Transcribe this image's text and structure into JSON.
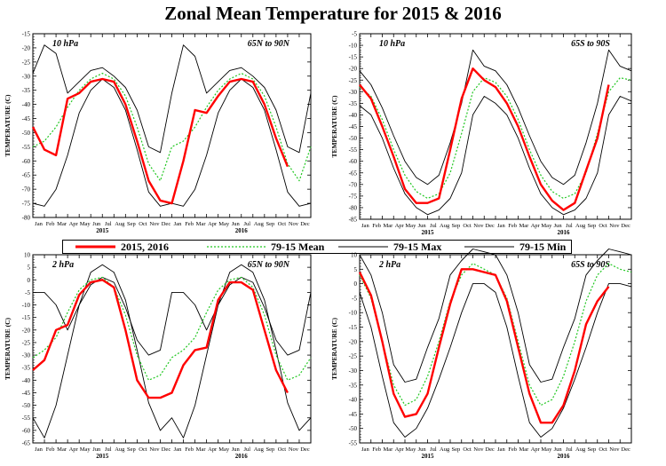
{
  "title": "Zonal Mean Temperature for 2015 & 2016",
  "legend": [
    {
      "label": "2015, 2016",
      "color": "#ff0000",
      "style": "solid-thick"
    },
    {
      "label": "79-15 Mean",
      "color": "#22c722",
      "style": "dotted"
    },
    {
      "label": "79-15 Max",
      "color": "#000000",
      "style": "solid"
    },
    {
      "label": "79-15 Min",
      "color": "#000000",
      "style": "solid"
    }
  ],
  "months": [
    "Jan",
    "Feb",
    "Mar",
    "Apr",
    "May",
    "Jun",
    "Jul",
    "Aug",
    "Sep",
    "Oct",
    "Nov",
    "Dec"
  ],
  "years": [
    "2015",
    "2016"
  ],
  "ylabel": "TEMPERATURE (C)",
  "chart_data": [
    {
      "type": "line",
      "pressure": "10 hPa",
      "region": "65N to 90N",
      "ylabel": "TEMPERATURE (C)",
      "ylim": [
        -80,
        -15
      ],
      "yticks": [
        -80,
        -75,
        -70,
        -65,
        -60,
        -55,
        -50,
        -45,
        -40,
        -35,
        -30,
        -25,
        -20,
        -15
      ],
      "x_months": [
        0,
        1,
        2,
        3,
        4,
        5,
        6,
        7,
        8,
        9,
        10,
        11,
        12,
        13,
        14,
        15,
        16,
        17,
        18,
        19,
        20,
        21,
        22,
        23,
        24
      ],
      "series": [
        {
          "name": "79-15 Mean",
          "values": [
            -55,
            -53,
            -48,
            -41,
            -35,
            -31,
            -29,
            -31,
            -37,
            -48,
            -61,
            -67,
            -55,
            -53,
            -48,
            -41,
            -35,
            -31,
            -29,
            -31,
            -37,
            -48,
            -61,
            -67,
            -55
          ]
        },
        {
          "name": "79-15 Max",
          "values": [
            -29,
            -19,
            -22,
            -36,
            -32,
            -28,
            -27,
            -30,
            -34,
            -42,
            -55,
            -57,
            -36,
            -19,
            -23,
            -36,
            -32,
            -28,
            -27,
            -30,
            -34,
            -42,
            -55,
            -57,
            -36
          ]
        },
        {
          "name": "79-15 Min",
          "values": [
            -75,
            -76,
            -70,
            -58,
            -43,
            -35,
            -31,
            -34,
            -42,
            -56,
            -71,
            -76,
            -75,
            -76,
            -70,
            -58,
            -43,
            -35,
            -31,
            -34,
            -42,
            -56,
            -71,
            -76,
            -75
          ]
        },
        {
          "name": "2015, 2016",
          "values": [
            -48,
            -56,
            -58,
            -38,
            -36,
            -32,
            -31,
            -32,
            -40,
            -53,
            -67,
            -74,
            -75,
            -60,
            -42,
            -43,
            -37,
            -32,
            -31,
            -32,
            -40,
            -52,
            -62,
            null,
            null
          ]
        }
      ]
    },
    {
      "type": "line",
      "pressure": "10 hPa",
      "region": "65S to 90S",
      "ylabel": "TEMPERATURE (C)",
      "ylim": [
        -85,
        -5
      ],
      "yticks": [
        -85,
        -80,
        -75,
        -70,
        -65,
        -60,
        -55,
        -50,
        -45,
        -40,
        -35,
        -30,
        -25,
        -20,
        -15,
        -10,
        -5
      ],
      "x_months": [
        0,
        1,
        2,
        3,
        4,
        5,
        6,
        7,
        8,
        9,
        10,
        11,
        12,
        13,
        14,
        15,
        16,
        17,
        18,
        19,
        20,
        21,
        22,
        23,
        24
      ],
      "series": [
        {
          "name": "79-15 Mean",
          "values": [
            -28,
            -32,
            -42,
            -55,
            -66,
            -73,
            -76,
            -74,
            -65,
            -48,
            -30,
            -24,
            -26,
            -32,
            -42,
            -55,
            -66,
            -73,
            -76,
            -74,
            -65,
            -48,
            -30,
            -24,
            -25
          ]
        },
        {
          "name": "79-15 Max",
          "values": [
            -21,
            -27,
            -37,
            -49,
            -60,
            -67,
            -70,
            -66,
            -52,
            -35,
            -12,
            -19,
            -21,
            -27,
            -37,
            -49,
            -60,
            -67,
            -70,
            -66,
            -52,
            -35,
            -12,
            -19,
            -21
          ]
        },
        {
          "name": "79-15 Min",
          "values": [
            -36,
            -40,
            -50,
            -63,
            -74,
            -80,
            -83,
            -81,
            -76,
            -65,
            -40,
            -32,
            -35,
            -40,
            -50,
            -63,
            -74,
            -80,
            -83,
            -81,
            -76,
            -65,
            -40,
            -32,
            -34
          ]
        },
        {
          "name": "2015, 2016",
          "values": [
            -27,
            -33,
            -45,
            -58,
            -72,
            -78,
            -78,
            -76,
            -55,
            -33,
            -20,
            -25,
            -28,
            -35,
            -45,
            -58,
            -70,
            -77,
            -81,
            -78,
            -64,
            -50,
            -27,
            null,
            null
          ]
        }
      ]
    },
    {
      "type": "line",
      "pressure": "2 hPa",
      "region": "65N to 90N",
      "ylabel": "TEMPERATURE (C)",
      "ylim": [
        -65,
        10
      ],
      "yticks": [
        -65,
        -60,
        -55,
        -50,
        -45,
        -40,
        -35,
        -30,
        -25,
        -20,
        -15,
        -10,
        -5,
        0,
        5,
        10
      ],
      "x_months": [
        0,
        1,
        2,
        3,
        4,
        5,
        6,
        7,
        8,
        9,
        10,
        11,
        12,
        13,
        14,
        15,
        16,
        17,
        18,
        19,
        20,
        21,
        22,
        23,
        24
      ],
      "series": [
        {
          "name": "79-15 Mean",
          "values": [
            -31,
            -28,
            -23,
            -13,
            -4,
            0,
            1,
            -3,
            -14,
            -30,
            -40,
            -38,
            -31,
            -28,
            -23,
            -13,
            -4,
            0,
            1,
            -3,
            -14,
            -30,
            -40,
            -38,
            -31
          ]
        },
        {
          "name": "79-15 Max",
          "values": [
            -5,
            -5,
            -10,
            -20,
            -10,
            -2,
            1,
            -1,
            -11,
            -24,
            -30,
            -28,
            -5,
            -5,
            -10,
            -20,
            -10,
            -2,
            1,
            -1,
            -11,
            -24,
            -30,
            -28,
            -5
          ]
        },
        {
          "name": "79-15 Min",
          "values": [
            -55,
            -63,
            -50,
            -30,
            -10,
            3,
            6,
            3,
            -8,
            -28,
            -49,
            -60,
            -55,
            -63,
            -50,
            -30,
            -10,
            3,
            6,
            3,
            -8,
            -28,
            -49,
            -60,
            -55
          ]
        },
        {
          "name": "2015, 2016",
          "values": [
            -36,
            -32,
            -20,
            -18,
            -6,
            -1,
            0,
            -3,
            -20,
            -40,
            -47,
            -47,
            -45,
            -34,
            -28,
            -27,
            -8,
            -1,
            -1,
            -4,
            -20,
            -36,
            -45,
            null,
            null
          ]
        }
      ]
    },
    {
      "type": "line",
      "pressure": "2 hPa",
      "region": "65S to 90S",
      "ylabel": "TEMPERATURE (C)",
      "ylim": [
        -55,
        10
      ],
      "yticks": [
        -55,
        -50,
        -45,
        -40,
        -35,
        -30,
        -25,
        -20,
        -15,
        -10,
        -5,
        0,
        5,
        10
      ],
      "x_months": [
        0,
        1,
        2,
        3,
        4,
        5,
        6,
        7,
        8,
        9,
        10,
        11,
        12,
        13,
        14,
        15,
        16,
        17,
        18,
        19,
        20,
        21,
        22,
        23,
        24
      ],
      "series": [
        {
          "name": "79-15 Mean",
          "values": [
            3,
            -5,
            -20,
            -35,
            -42,
            -40,
            -32,
            -20,
            -6,
            3,
            7,
            5,
            3,
            -5,
            -20,
            -35,
            -42,
            -40,
            -32,
            -20,
            -6,
            3,
            7,
            5,
            4
          ]
        },
        {
          "name": "79-15 Max",
          "values": [
            10,
            3,
            -10,
            -28,
            -34,
            -33,
            -22,
            -12,
            3,
            8,
            12,
            11,
            10,
            3,
            -10,
            -28,
            -34,
            -33,
            -22,
            -12,
            3,
            8,
            12,
            11,
            10
          ]
        },
        {
          "name": "79-15 Min",
          "values": [
            -3,
            -15,
            -32,
            -48,
            -53,
            -50,
            -43,
            -33,
            -22,
            -10,
            0,
            0,
            -3,
            -15,
            -32,
            -48,
            -53,
            -50,
            -43,
            -33,
            -22,
            -10,
            0,
            0,
            -1
          ]
        },
        {
          "name": "2015, 2016",
          "values": [
            4,
            -4,
            -20,
            -38,
            -46,
            -45,
            -38,
            -22,
            -7,
            5,
            5,
            4,
            3,
            -6,
            -22,
            -38,
            -48,
            -48,
            -42,
            -30,
            -14,
            -6,
            -1,
            null,
            null
          ]
        }
      ]
    }
  ]
}
